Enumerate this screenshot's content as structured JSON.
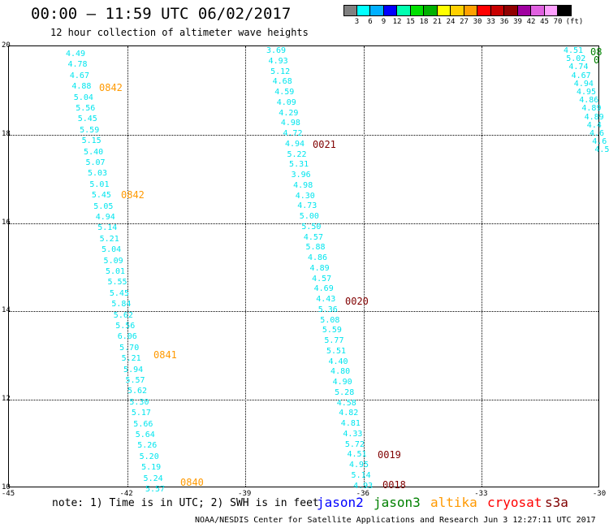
{
  "header": {
    "title": "00:00 – 11:59 UTC 06/02/2017",
    "subtitle": "12 hour collection of altimeter wave heights"
  },
  "scale": {
    "unit": "(ft)",
    "colors": [
      "#808080",
      "#00ffff",
      "#00b0ff",
      "#0000ff",
      "#00ffb0",
      "#00e000",
      "#00b000",
      "#ffff00",
      "#ffd000",
      "#ffa000",
      "#ff0000",
      "#c80000",
      "#900000",
      "#a000a0",
      "#e060e0",
      "#ffa0ff",
      "#000000"
    ],
    "labels": [
      "3",
      "6",
      "9",
      "12",
      "15",
      "18",
      "21",
      "24",
      "27",
      "30",
      "33",
      "36",
      "39",
      "42",
      "45",
      "70"
    ]
  },
  "axes": {
    "lat_labels": [
      "20",
      "18",
      "16",
      "14",
      "12",
      "10"
    ],
    "lon_labels": [
      "-45",
      "-42",
      "-39",
      "-36",
      "-33",
      "-30"
    ]
  },
  "tracks": [
    {
      "color": "#00e5ee",
      "values": [
        "4.49",
        "4.78",
        "4.67",
        "4.88",
        "5.04",
        "5.56",
        "5.45",
        "5.59",
        "5.15",
        "5.40",
        "5.07",
        "5.03",
        "5.01",
        "5.45",
        "5.05",
        "4.94",
        "5.14",
        "5.21",
        "5.04",
        "5.09",
        "5.01",
        "5.55",
        "5.45",
        "5.84",
        "5.62",
        "5.56",
        "6.06",
        "5.70",
        "5.21",
        "5.94",
        "5.57",
        "5.62",
        "5.30",
        "5.17",
        "5.66",
        "5.64",
        "5.26",
        "5.20",
        "5.19",
        "5.24",
        "5.57"
      ]
    },
    {
      "color": "#00e5ee",
      "values": [
        "3.69",
        "4.93",
        "5.12",
        "4.68",
        "4.59",
        "4.09",
        "4.29",
        "4.98",
        "4.72",
        "4.94",
        "5.22",
        "5.31",
        "3.96",
        "4.98",
        "4.30",
        "4.73",
        "5.00",
        "5.50",
        "4.57",
        "5.88",
        "4.86",
        "4.89",
        "4.57",
        "4.69",
        "4.43",
        "5.36",
        "5.08",
        "5.59",
        "5.77",
        "5.51",
        "4.40",
        "4.80",
        "4.90",
        "5.28",
        "4.58",
        "4.82",
        "4.81",
        "4.33",
        "5.72",
        "4.51",
        "4.95",
        "5.14",
        "4.93"
      ]
    },
    {
      "color": "#00e5ee",
      "values": [
        "4.51",
        "5.02",
        "4.74",
        "4.67",
        "4.94",
        "4.95",
        "4.86",
        "4.89",
        "4.89",
        "4.4",
        "4.6",
        "4.6",
        "4.5"
      ]
    }
  ],
  "time_labels": [
    {
      "text": "0842",
      "color": "#ff9900"
    },
    {
      "text": "0842",
      "color": "#ff9900"
    },
    {
      "text": "0841",
      "color": "#ff9900"
    },
    {
      "text": "0840",
      "color": "#ff9900"
    },
    {
      "text": "0021",
      "color": "#800000"
    },
    {
      "text": "0020",
      "color": "#800000"
    },
    {
      "text": "0019",
      "color": "#800000"
    },
    {
      "text": "0018",
      "color": "#800000"
    },
    {
      "text": "08",
      "color": "#008000"
    },
    {
      "text": "0",
      "color": "#008000"
    }
  ],
  "footer": {
    "note": "note: 1) Time is in UTC; 2) SWH is in feet",
    "legend": [
      {
        "name": "jason2",
        "color": "#0000ff"
      },
      {
        "name": "jason3",
        "color": "#008000"
      },
      {
        "name": "altika",
        "color": "#ff9900"
      },
      {
        "name": "cryosat",
        "color": "#ff0000"
      },
      {
        "name": "s3a",
        "color": "#800000"
      }
    ],
    "credit": "NOAA/NESDIS Center for Satellite Applications and Research   Jun  3 12:27:11 UTC 2017"
  }
}
